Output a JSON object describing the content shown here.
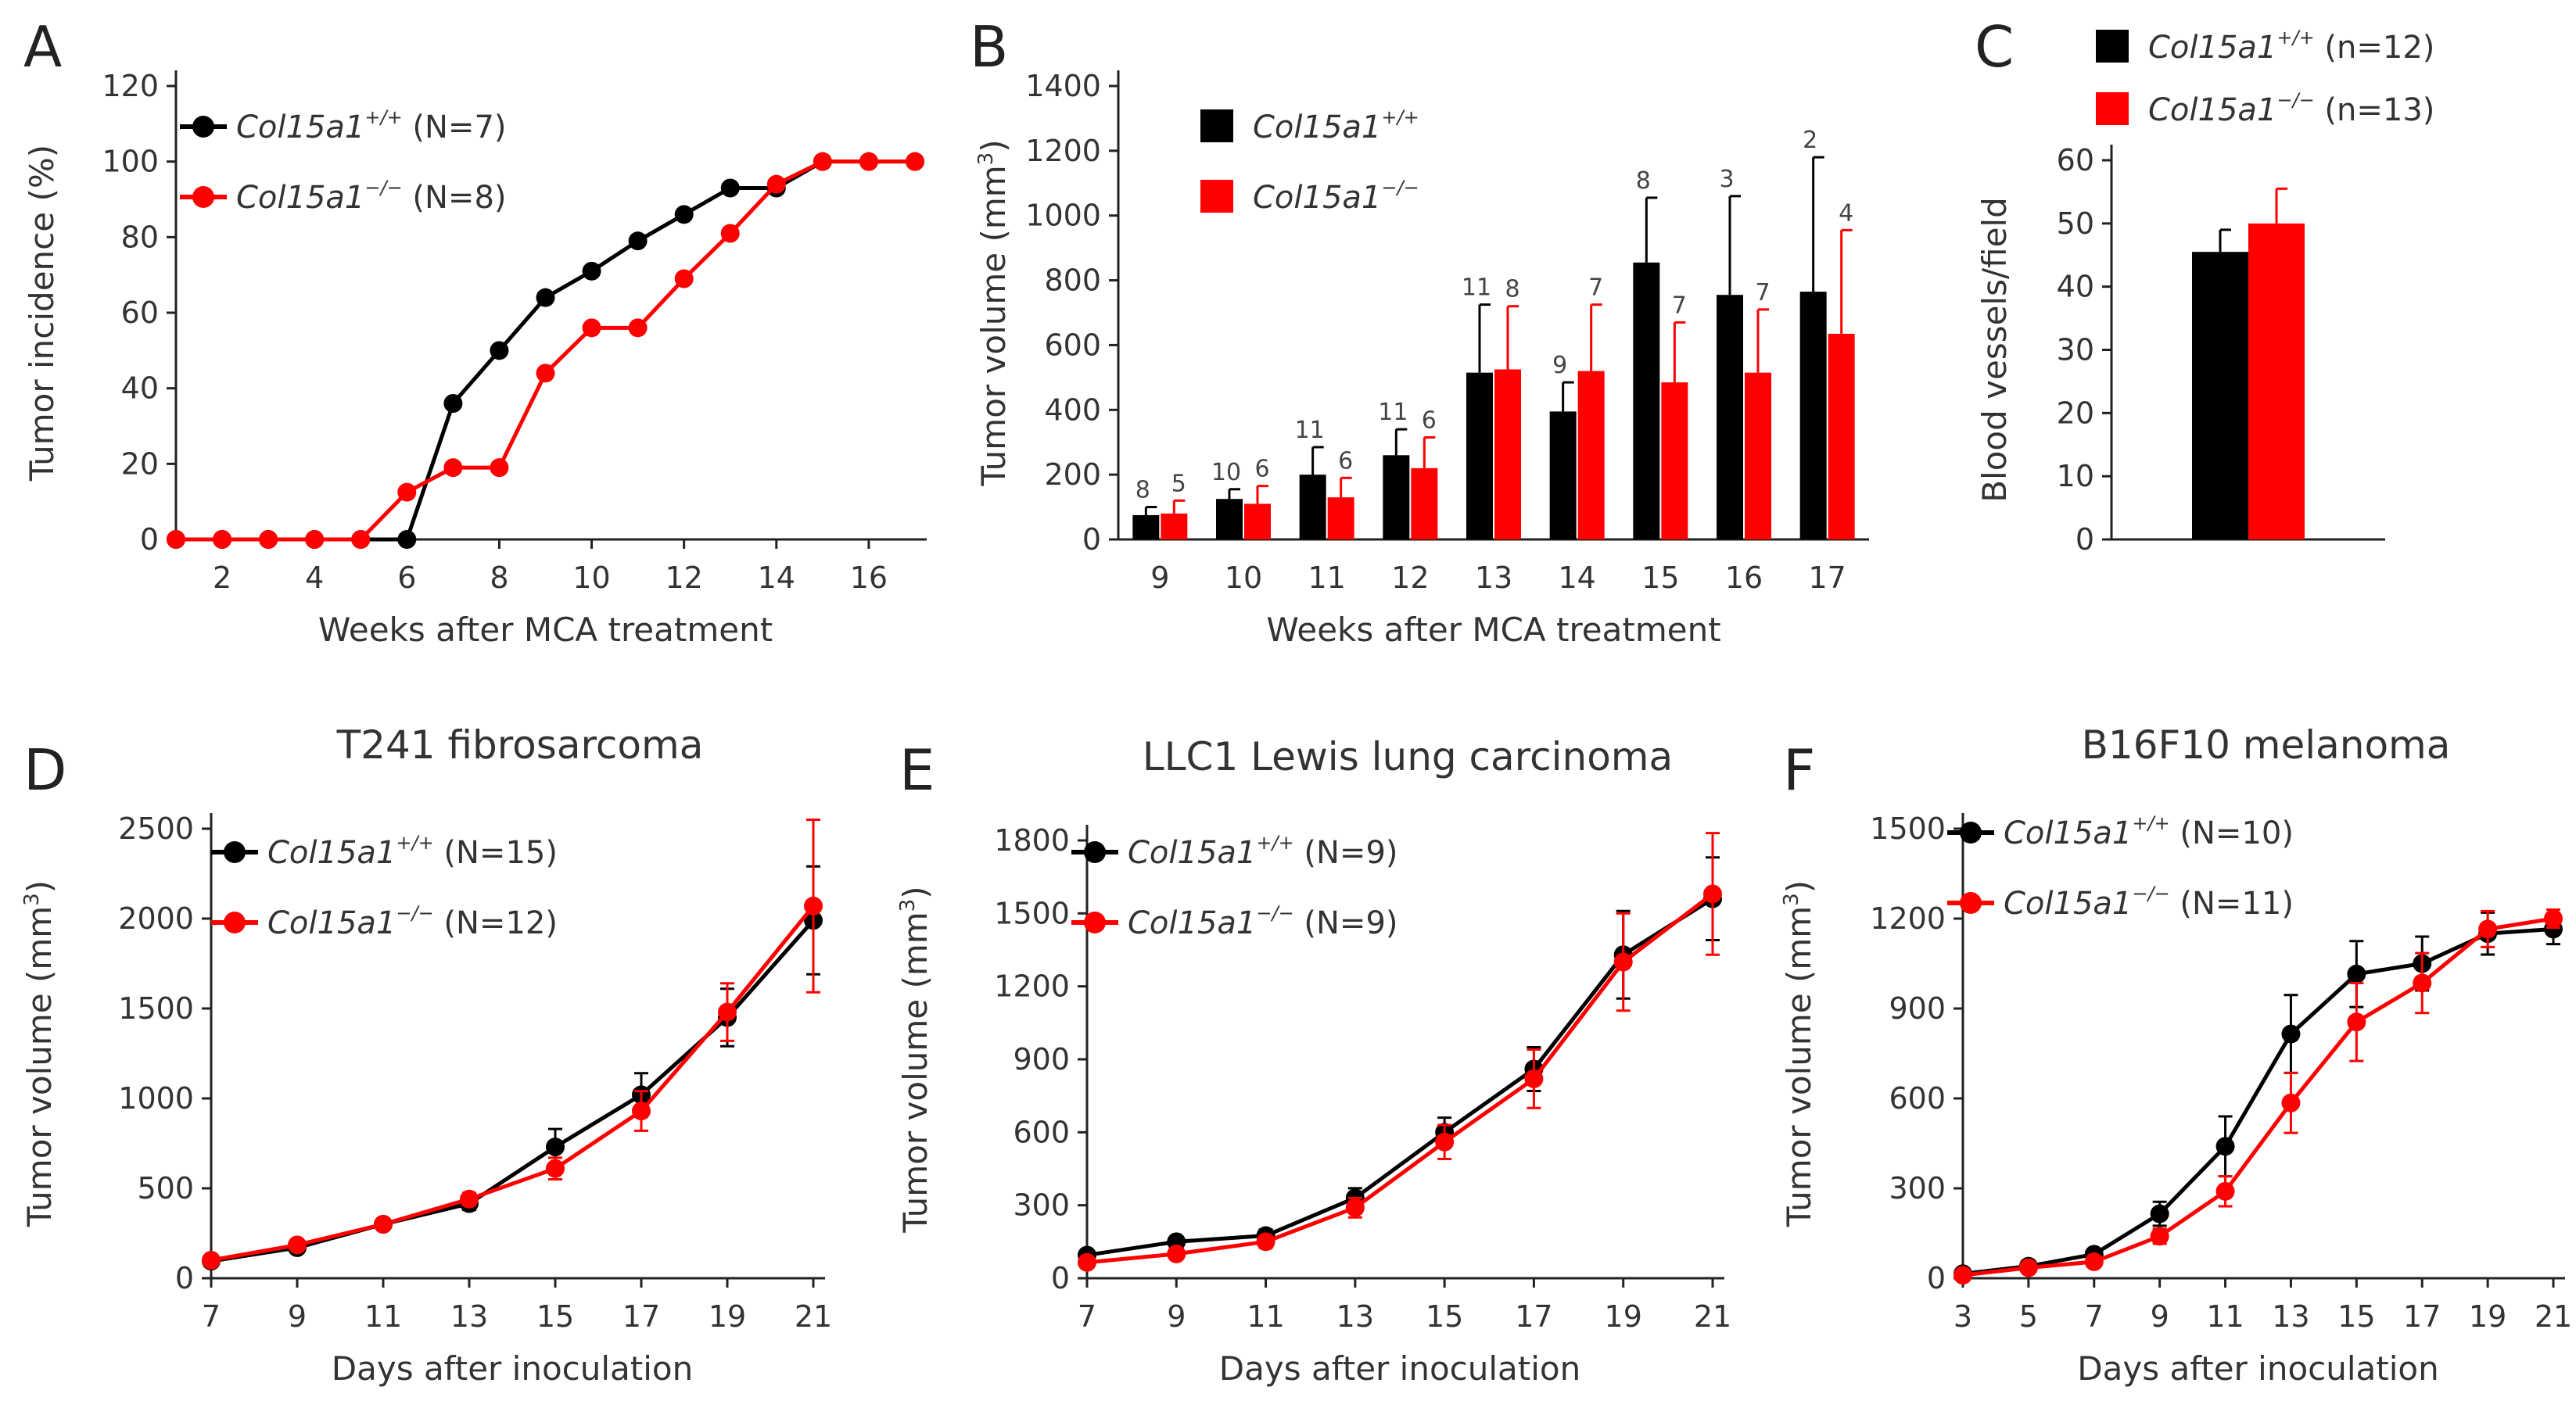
{
  "colors": {
    "wt": "#000000",
    "ko": "#ff0000"
  },
  "chart_data": [
    {
      "type": "line",
      "panel": "A",
      "title": "",
      "xlabel": "Weeks after  MCA treatment",
      "ylabel": "Tumor incidence (%)",
      "xlim": [
        1,
        17
      ],
      "ylim": [
        0,
        120
      ],
      "xticks": [
        2,
        4,
        6,
        8,
        10,
        12,
        14,
        16
      ],
      "yticks": [
        0,
        20,
        40,
        60,
        80,
        100,
        120
      ],
      "x": [
        1,
        2,
        3,
        4,
        5,
        6,
        7,
        8,
        9,
        10,
        11,
        12,
        13,
        14,
        15,
        16,
        17
      ],
      "series": [
        {
          "name": "Col15a1",
          "sup": "+/+",
          "n": "(N=7)",
          "color": "#000000",
          "values": [
            0,
            0,
            0,
            0,
            0,
            0,
            36,
            50,
            64,
            71,
            79,
            86,
            93,
            93,
            100,
            100,
            100
          ]
        },
        {
          "name": "Col15a1",
          "sup": "−/−",
          "n": "(N=8)",
          "color": "#ff0000",
          "values": [
            0,
            0,
            0,
            0,
            0,
            12.5,
            19,
            19,
            44,
            56,
            56,
            69,
            81,
            94,
            100,
            100,
            100
          ]
        }
      ]
    },
    {
      "type": "bar",
      "panel": "B",
      "title": "",
      "xlabel": "Weeks after MCA treatment",
      "ylabel": "Tumor volume (mm",
      "ylabel_sup": "3",
      "ylabel_close": ")",
      "ylim": [
        0,
        1400
      ],
      "yticks": [
        0,
        200,
        400,
        600,
        800,
        1000,
        1200,
        1400
      ],
      "categories": [
        "9",
        "10",
        "11",
        "12",
        "13",
        "14",
        "15",
        "16",
        "17"
      ],
      "series": [
        {
          "name": "Col15a1",
          "sup": "+/+",
          "color": "#000000",
          "values": [
            75,
            125,
            200,
            260,
            515,
            395,
            855,
            755,
            765
          ],
          "errors": [
            25,
            30,
            85,
            80,
            210,
            90,
            200,
            305,
            415
          ],
          "labels": [
            "8",
            "10",
            "11",
            "11",
            "11",
            "9",
            "8",
            "3",
            "2"
          ]
        },
        {
          "name": "Col15a1",
          "sup": "−/−",
          "color": "#ff0000",
          "values": [
            80,
            110,
            130,
            220,
            525,
            520,
            485,
            515,
            635
          ],
          "errors": [
            40,
            55,
            60,
            95,
            195,
            205,
            185,
            195,
            320
          ],
          "labels": [
            "5",
            "6",
            "6",
            "6",
            "8",
            "7",
            "7",
            "7",
            "4"
          ]
        }
      ]
    },
    {
      "type": "bar",
      "panel": "C",
      "title": "",
      "xlabel": "",
      "ylabel": "Blood vessels/field",
      "ylim": [
        0,
        60
      ],
      "yticks": [
        0,
        10,
        20,
        30,
        40,
        50,
        60
      ],
      "categories": [
        ""
      ],
      "series": [
        {
          "name": "Col15a1",
          "sup": "+/+",
          "n": "(n=12)",
          "color": "#000000",
          "values": [
            45.5
          ],
          "errors": [
            3.5
          ]
        },
        {
          "name": "Col15a1",
          "sup": "−/−",
          "n": "(n=13)",
          "color": "#ff0000",
          "values": [
            50
          ],
          "errors": [
            5.5
          ]
        }
      ]
    },
    {
      "type": "line",
      "panel": "D",
      "title": "T241 fibrosarcoma",
      "xlabel": "Days after inoculation",
      "ylabel": "Tumor volume (mm",
      "ylabel_sup": "3",
      "ylabel_close": ")",
      "xlim": [
        7,
        21
      ],
      "ylim": [
        0,
        2500
      ],
      "xticks": [
        7,
        9,
        11,
        13,
        15,
        17,
        19,
        21
      ],
      "yticks": [
        0,
        500,
        1000,
        1500,
        2000,
        2500
      ],
      "x": [
        7,
        9,
        11,
        13,
        15,
        17,
        19,
        21
      ],
      "series": [
        {
          "name": "Col15a1",
          "sup": "+/+",
          "n": "(N=15)",
          "color": "#000000",
          "values": [
            95,
            170,
            300,
            415,
            730,
            1020,
            1450,
            1990
          ],
          "errors": [
            15,
            25,
            30,
            35,
            100,
            120,
            160,
            300
          ]
        },
        {
          "name": "Col15a1",
          "sup": "−/−",
          "n": "(N=12)",
          "color": "#ff0000",
          "values": [
            100,
            185,
            300,
            440,
            610,
            930,
            1480,
            2070
          ],
          "errors": [
            15,
            25,
            30,
            35,
            60,
            110,
            160,
            480
          ]
        }
      ]
    },
    {
      "type": "line",
      "panel": "E",
      "title": "LLC1 Lewis lung carcinoma",
      "xlabel": "Days after inoculation",
      "ylabel": "Tumor volume (mm",
      "ylabel_sup": "3",
      "ylabel_close": ")",
      "xlim": [
        7,
        21
      ],
      "ylim": [
        0,
        1800
      ],
      "xticks": [
        7,
        9,
        11,
        13,
        15,
        17,
        19,
        21
      ],
      "yticks": [
        0,
        300,
        600,
        900,
        1200,
        1500,
        1800
      ],
      "x": [
        7,
        9,
        11,
        13,
        15,
        17,
        19,
        21
      ],
      "series": [
        {
          "name": "Col15a1",
          "sup": "+/+",
          "n": "(N=9)",
          "color": "#000000",
          "values": [
            95,
            150,
            175,
            330,
            600,
            860,
            1330,
            1560
          ],
          "errors": [
            15,
            20,
            25,
            40,
            60,
            90,
            180,
            170
          ]
        },
        {
          "name": "Col15a1",
          "sup": "−/−",
          "n": "(N=9)",
          "color": "#ff0000",
          "values": [
            65,
            100,
            150,
            290,
            560,
            820,
            1300,
            1580
          ],
          "errors": [
            15,
            20,
            25,
            40,
            70,
            120,
            200,
            250
          ]
        }
      ]
    },
    {
      "type": "line",
      "panel": "F",
      "title": "B16F10 melanoma",
      "xlabel": "Days after inoculation",
      "ylabel": "Tumor volume (mm",
      "ylabel_sup": "3",
      "ylabel_close": ")",
      "xlim": [
        3,
        21
      ],
      "ylim": [
        0,
        1500
      ],
      "xticks": [
        3,
        5,
        7,
        9,
        11,
        13,
        15,
        17,
        19,
        21
      ],
      "yticks": [
        0,
        300,
        600,
        900,
        1200,
        1500
      ],
      "x": [
        3,
        5,
        7,
        9,
        11,
        13,
        15,
        17,
        19,
        21
      ],
      "series": [
        {
          "name": "Col15a1",
          "sup": "+/+",
          "n": "(N=10)",
          "color": "#000000",
          "values": [
            15,
            40,
            80,
            215,
            440,
            815,
            1015,
            1050,
            1150,
            1165
          ],
          "errors": [
            5,
            10,
            15,
            40,
            100,
            130,
            110,
            90,
            70,
            50
          ]
        },
        {
          "name": "Col15a1",
          "sup": "−/−",
          "n": "(N=11)",
          "color": "#ff0000",
          "values": [
            10,
            35,
            55,
            140,
            290,
            585,
            855,
            985,
            1165,
            1200
          ],
          "errors": [
            5,
            10,
            15,
            25,
            50,
            100,
            130,
            100,
            60,
            30
          ]
        }
      ]
    }
  ]
}
